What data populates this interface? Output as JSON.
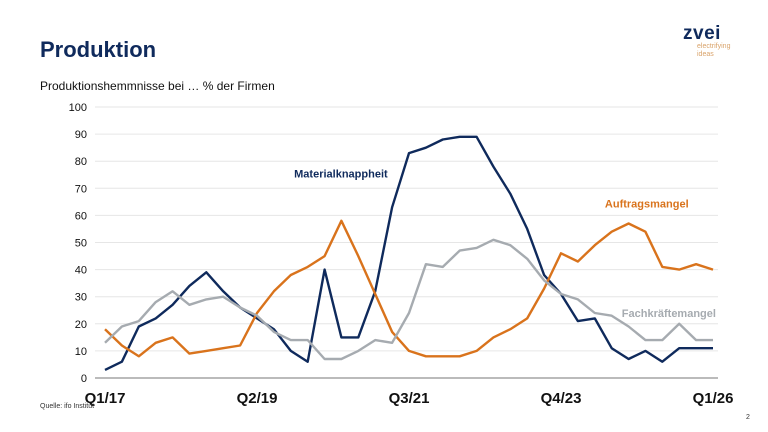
{
  "header": {
    "title": "Produktion",
    "subtitle": "Produktionshemmnisse bei … % der Firmen"
  },
  "logo": {
    "word": "zvei",
    "tagline_1": "electrifying",
    "tagline_2": "ideas"
  },
  "footer": {
    "source": "Quelle: ifo Institut",
    "page_number": "2"
  },
  "colors": {
    "material": "#0f2a5c",
    "auftrag": "#d9731c",
    "fachkraefte": "#a6abb0"
  },
  "chart_data": {
    "type": "line",
    "title": "Produktionshemmnisse bei … % der Firmen",
    "xlabel": "",
    "ylabel": "",
    "ylim": [
      0,
      100
    ],
    "yticks": [
      0,
      10,
      20,
      30,
      40,
      50,
      60,
      70,
      80,
      90,
      100
    ],
    "x_count": 37,
    "xtick_labels": [
      {
        "index": 0,
        "label": "Q1/17"
      },
      {
        "index": 9,
        "label": "Q2/19"
      },
      {
        "index": 18,
        "label": "Q3/21"
      },
      {
        "index": 27,
        "label": "Q4/23"
      },
      {
        "index": 36,
        "label": "Q1/26"
      }
    ],
    "grid": true,
    "series": [
      {
        "name": "Materialknappheit",
        "color": "#0f2a5c",
        "label_at": [
          11.2,
          74
        ],
        "values": [
          3,
          6,
          19,
          22,
          27,
          34,
          39,
          32,
          26,
          22,
          18,
          10,
          6,
          40,
          15,
          15,
          32,
          63,
          83,
          85,
          88,
          89,
          89,
          78,
          68,
          55,
          38,
          31,
          21,
          22,
          11,
          7,
          10,
          6,
          11,
          11,
          11
        ]
      },
      {
        "name": "Auftragsmangel",
        "color": "#d9731c",
        "label_at": [
          29.6,
          63
        ],
        "values": [
          18,
          12,
          8,
          13,
          15,
          9,
          10,
          11,
          12,
          24,
          32,
          38,
          41,
          45,
          58,
          45,
          31,
          17,
          10,
          8,
          8,
          8,
          10,
          15,
          18,
          22,
          33,
          46,
          43,
          49,
          54,
          57,
          54,
          41,
          40,
          42,
          40
        ]
      },
      {
        "name": "Fachkräftemangel",
        "color": "#a6abb0",
        "label_at": [
          30.6,
          22.5
        ],
        "values": [
          13,
          19,
          21,
          28,
          32,
          27,
          29,
          30,
          26,
          23,
          17,
          14,
          14,
          7,
          7,
          10,
          14,
          13,
          24,
          42,
          41,
          47,
          48,
          51,
          49,
          44,
          36,
          31,
          29,
          24,
          23,
          19,
          14,
          14,
          20,
          14,
          14
        ]
      }
    ]
  }
}
